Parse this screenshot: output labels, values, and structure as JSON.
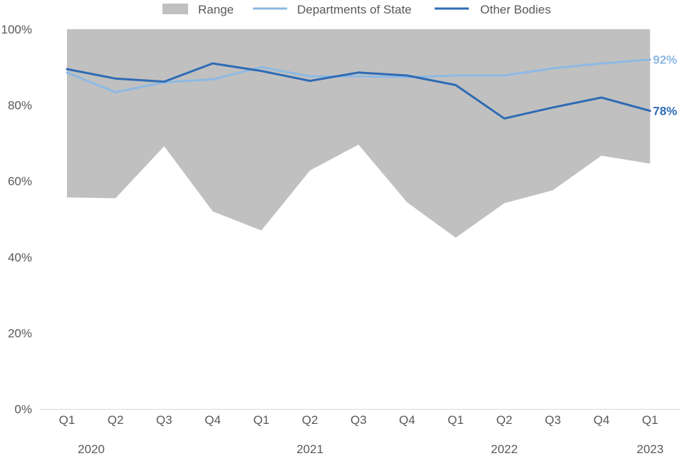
{
  "chart_data": {
    "type": "line",
    "title": "",
    "xlabel": "",
    "ylabel": "",
    "ylim": [
      0,
      100
    ],
    "yticks": [
      0,
      20,
      40,
      60,
      80,
      100
    ],
    "ytick_labels": [
      "0%",
      "20%",
      "40%",
      "60%",
      "80%",
      "100%"
    ],
    "categories": [
      "Q1",
      "Q2",
      "Q3",
      "Q4",
      "Q1",
      "Q2",
      "Q3",
      "Q4",
      "Q1",
      "Q2",
      "Q3",
      "Q4",
      "Q1"
    ],
    "years": [
      {
        "label": "2020",
        "category_index": 0.5
      },
      {
        "label": "2021",
        "category_index": 5.0
      },
      {
        "label": "2022",
        "category_index": 9.0
      },
      {
        "label": "2023",
        "category_index": 12.0
      }
    ],
    "legend_position": "top-center",
    "range": {
      "name": "Range",
      "color": "#c0c0c0",
      "low": [
        55.7,
        55.5,
        69.2,
        52.0,
        47.0,
        62.8,
        69.6,
        54.4,
        45.1,
        54.2,
        57.6,
        66.7,
        64.6
      ],
      "high": [
        100,
        100,
        100,
        100,
        100,
        100,
        100,
        100,
        100,
        100,
        100,
        100,
        100
      ]
    },
    "series": [
      {
        "name": "Departments of State",
        "color": "#8db9e4",
        "values": [
          88.6,
          83.4,
          86.0,
          86.8,
          90.0,
          87.6,
          87.6,
          87.4,
          87.8,
          87.8,
          89.7,
          91.0,
          92.0
        ],
        "end_label": "92%"
      },
      {
        "name": "Other Bodies",
        "color": "#2e6bb5",
        "values": [
          89.5,
          87.0,
          86.2,
          91.0,
          89.0,
          86.4,
          88.6,
          87.8,
          85.3,
          76.5,
          79.4,
          82.0,
          78.5
        ],
        "end_label": "78%"
      }
    ]
  }
}
